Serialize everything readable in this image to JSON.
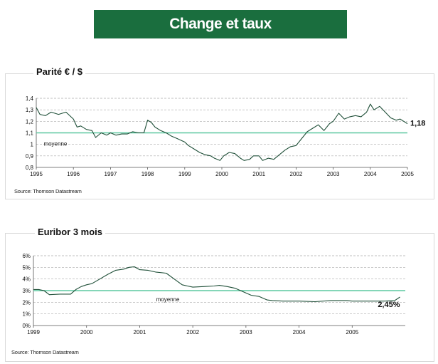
{
  "header": {
    "title": "Change et taux"
  },
  "colors": {
    "banner": "#1a6e3e",
    "average_line": "#5cc8a0",
    "series_line": "#1f4f38",
    "grid": "#aaaaaa"
  },
  "charts": {
    "parite": {
      "title": "Parité € / $",
      "source": "Source: Thomson Datastream",
      "average_label": "moyenne",
      "end_label": "1,18"
    },
    "euribor": {
      "title": "Euribor 3 mois",
      "source": "Source: Thomson Datastream",
      "average_label": "moyenne",
      "end_label": "2,45%"
    }
  },
  "chart_data": [
    {
      "type": "line",
      "title": "Parité € / $",
      "xlabel": "",
      "ylabel": "",
      "x_ticks": [
        "1995",
        "1996",
        "1997",
        "1998",
        "1999",
        "2000",
        "2001",
        "2002",
        "2003",
        "2004",
        "2005"
      ],
      "xlim": [
        1995,
        2005
      ],
      "y_ticks": [
        "0,8",
        "0,9",
        "1",
        "1,1",
        "1,2",
        "1,3",
        "1,4"
      ],
      "ylim": [
        0.8,
        1.4
      ],
      "grid": "horizontal dashed",
      "average": 1.1,
      "average_label": "moyenne",
      "end_label": "1,18",
      "series": [
        {
          "x": [
            1995.0,
            1995.1,
            1995.25,
            1995.4,
            1995.6,
            1995.8,
            1996.0,
            1996.1,
            1996.2,
            1996.35,
            1996.5,
            1996.6,
            1996.75,
            1996.9,
            1997.0,
            1997.15,
            1997.3,
            1997.45,
            1997.6,
            1997.75,
            1997.9,
            1998.0,
            1998.1,
            1998.2,
            1998.35,
            1998.5,
            1998.65,
            1998.8,
            1999.0,
            1999.1,
            1999.25,
            1999.4,
            1999.55,
            1999.7,
            1999.8,
            1999.95,
            2000.05,
            2000.2,
            2000.35,
            2000.5,
            2000.6,
            2000.75,
            2000.85,
            2001.0,
            2001.1,
            2001.25,
            2001.4,
            2001.55,
            2001.7,
            2001.85,
            2002.0,
            2002.15,
            2002.3,
            2002.45,
            2002.6,
            2002.75,
            2002.9,
            2003.0,
            2003.15,
            2003.3,
            2003.45,
            2003.6,
            2003.75,
            2003.9,
            2004.0,
            2004.1,
            2004.25,
            2004.4,
            2004.55,
            2004.7,
            2004.8,
            2004.9,
            2005.0
          ],
          "y": [
            1.32,
            1.26,
            1.25,
            1.28,
            1.26,
            1.28,
            1.22,
            1.15,
            1.16,
            1.13,
            1.12,
            1.06,
            1.1,
            1.08,
            1.1,
            1.08,
            1.09,
            1.09,
            1.11,
            1.1,
            1.1,
            1.21,
            1.19,
            1.15,
            1.12,
            1.1,
            1.07,
            1.05,
            1.02,
            0.99,
            0.96,
            0.93,
            0.91,
            0.9,
            0.88,
            0.86,
            0.9,
            0.93,
            0.92,
            0.88,
            0.86,
            0.87,
            0.9,
            0.9,
            0.86,
            0.88,
            0.87,
            0.91,
            0.95,
            0.98,
            0.99,
            1.05,
            1.11,
            1.14,
            1.17,
            1.12,
            1.18,
            1.2,
            1.27,
            1.22,
            1.24,
            1.25,
            1.24,
            1.28,
            1.35,
            1.3,
            1.33,
            1.28,
            1.23,
            1.21,
            1.22,
            1.2,
            1.18
          ]
        }
      ]
    },
    {
      "type": "line",
      "title": "Euribor 3 mois",
      "xlabel": "",
      "ylabel": "",
      "x_ticks": [
        "1999",
        "2000",
        "2001",
        "2002",
        "2003",
        "2004",
        "2005"
      ],
      "xlim": [
        1999,
        2006
      ],
      "y_ticks": [
        "0%",
        "1%",
        "2%",
        "3%",
        "4%",
        "5%",
        "6%"
      ],
      "ylim": [
        0,
        6
      ],
      "grid": "horizontal dashed",
      "average": 3.0,
      "average_label": "moyenne",
      "end_label": "2,45%",
      "series": [
        {
          "x": [
            1999.0,
            1999.1,
            1999.2,
            1999.3,
            1999.5,
            1999.7,
            1999.8,
            1999.9,
            2000.0,
            2000.1,
            2000.25,
            2000.4,
            2000.55,
            2000.7,
            2000.8,
            2000.9,
            2001.0,
            2001.15,
            2001.3,
            2001.5,
            2001.65,
            2001.8,
            2001.9,
            2002.0,
            2002.2,
            2002.4,
            2002.5,
            2002.65,
            2002.8,
            2002.95,
            2003.1,
            2003.25,
            2003.4,
            2003.5,
            2003.7,
            2004.0,
            2004.3,
            2004.6,
            2004.9,
            2005.0,
            2005.3,
            2005.6,
            2005.8,
            2005.9
          ],
          "y": [
            3.1,
            3.1,
            3.0,
            2.65,
            2.7,
            2.7,
            3.1,
            3.35,
            3.5,
            3.6,
            4.0,
            4.4,
            4.75,
            4.85,
            5.0,
            5.05,
            4.8,
            4.75,
            4.6,
            4.5,
            4.0,
            3.5,
            3.4,
            3.3,
            3.35,
            3.4,
            3.45,
            3.35,
            3.2,
            2.9,
            2.6,
            2.5,
            2.2,
            2.15,
            2.1,
            2.1,
            2.05,
            2.15,
            2.15,
            2.1,
            2.1,
            2.1,
            2.15,
            2.45
          ]
        }
      ]
    }
  ]
}
